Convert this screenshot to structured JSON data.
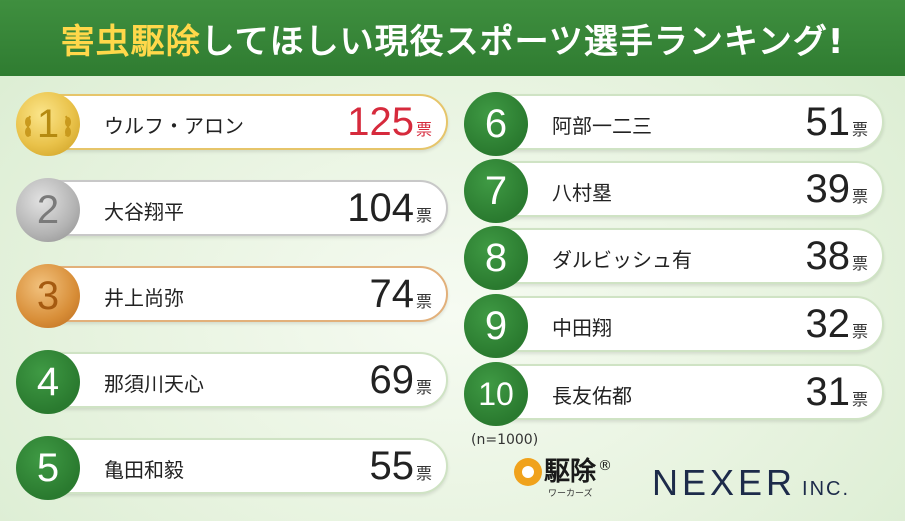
{
  "title": {
    "highlight": "害虫駆除",
    "rest": "してほしい現役スポーツ選手ランキング!"
  },
  "unit": "票",
  "ranking": [
    {
      "rank": "1",
      "name": "ウルフ・アロン",
      "votes": "125"
    },
    {
      "rank": "2",
      "name": "大谷翔平",
      "votes": "104"
    },
    {
      "rank": "3",
      "name": "井上尚弥",
      "votes": "74"
    },
    {
      "rank": "4",
      "name": "那須川天心",
      "votes": "69"
    },
    {
      "rank": "5",
      "name": "亀田和毅",
      "votes": "55"
    },
    {
      "rank": "6",
      "name": "阿部一二三",
      "votes": "51"
    },
    {
      "rank": "7",
      "name": "八村塁",
      "votes": "39"
    },
    {
      "rank": "8",
      "name": "ダルビッシュ有",
      "votes": "38"
    },
    {
      "rank": "9",
      "name": "中田翔",
      "votes": "32"
    },
    {
      "rank": "10",
      "name": "長友佑都",
      "votes": "31"
    }
  ],
  "note": "(n=1000)",
  "logos": {
    "kujo_main": "駆除",
    "kujo_reg": "®",
    "kujo_sub": "ワーカーズ",
    "nexer_main": "NEXER",
    "nexer_inc": "INC."
  },
  "colors": {
    "title_bg": "#2f7c31",
    "title_highlight": "#ffd84a",
    "badge_green": "#2a7a2f",
    "gold": "#e9c24a",
    "silver": "#b3b3b3",
    "bronze": "#d88e38",
    "first_place_votes": "#d62a3c"
  }
}
